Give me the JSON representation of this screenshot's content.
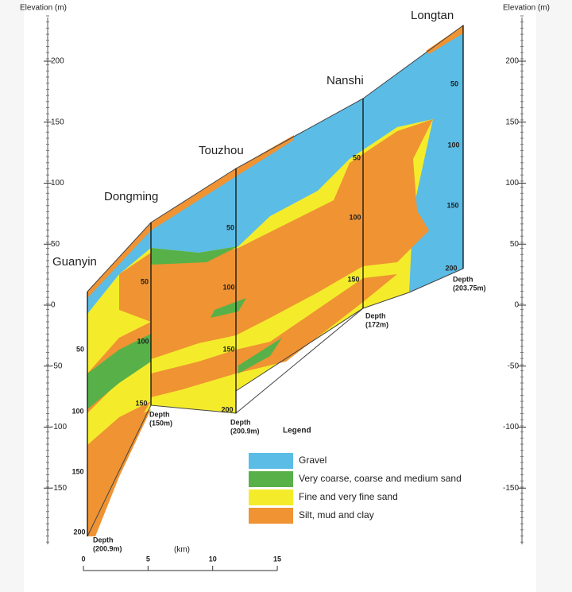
{
  "axes": {
    "left": {
      "title": "Elevation (m)",
      "ticks": [
        200,
        150,
        100,
        50,
        0,
        -50,
        -100,
        -150
      ]
    },
    "right": {
      "title": "Elevation (m)",
      "ticks": [
        200,
        150,
        100,
        50,
        0,
        -50,
        -100,
        -150
      ]
    }
  },
  "wells": [
    {
      "name": "Guanyin",
      "depths": [
        50,
        100,
        150,
        200
      ],
      "note": [
        "Depth",
        "(200.9m)"
      ]
    },
    {
      "name": "Dongming",
      "depths": [
        50,
        100,
        150
      ],
      "note": [
        "Depth",
        "(150m)"
      ]
    },
    {
      "name": "Touzhou",
      "depths": [
        50,
        100,
        150,
        200
      ],
      "note": [
        "Depth",
        "(200.9m)"
      ]
    },
    {
      "name": "Nanshi",
      "depths": [
        50,
        100,
        150
      ],
      "note": [
        "Depth",
        "(172m)"
      ]
    },
    {
      "name": "Longtan",
      "depths": [
        50,
        100,
        150,
        200
      ],
      "note": [
        "Depth",
        "(203.75m)"
      ]
    }
  ],
  "legend": {
    "title": "Legend",
    "items": [
      {
        "label": "Gravel",
        "color": "#5bbce6"
      },
      {
        "label": "Very coarse, coarse and medium sand",
        "color": "#57b148"
      },
      {
        "label": "Fine and very fine sand",
        "color": "#f4ec2b"
      },
      {
        "label": "Silt, mud and clay",
        "color": "#ef9333"
      }
    ]
  },
  "scale": {
    "unit": "(km)",
    "ticks": [
      0,
      5,
      10,
      15
    ]
  }
}
